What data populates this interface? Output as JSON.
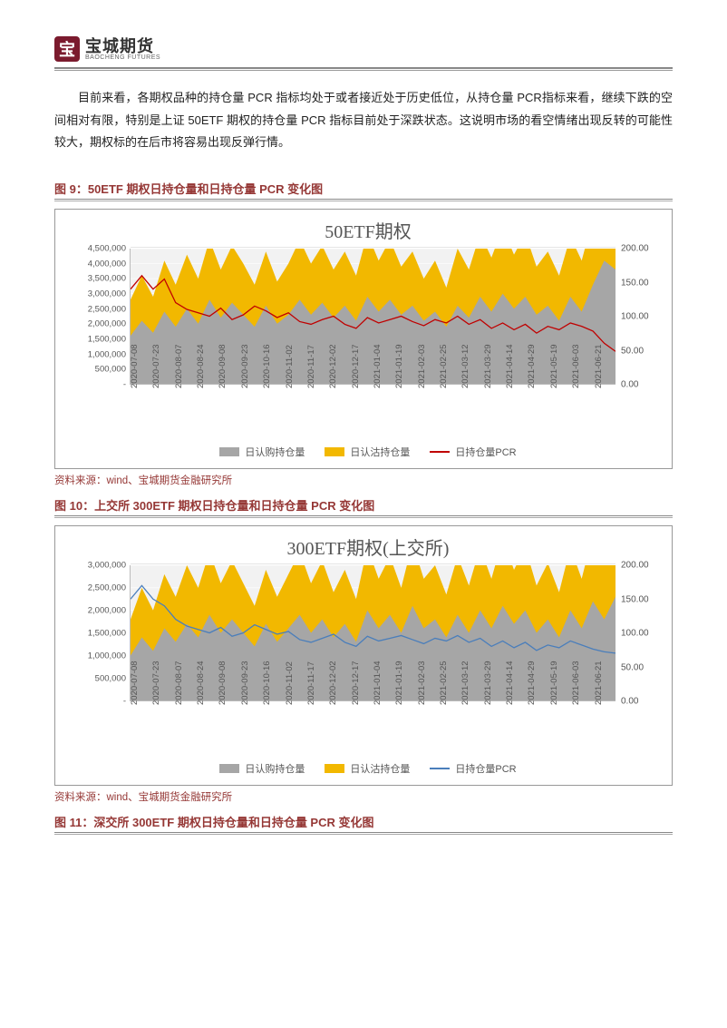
{
  "logo": {
    "cn": "宝城期货",
    "en": "BAOCHENG FUTURES",
    "mark": "宝"
  },
  "paragraph": "目前来看，各期权品种的持仓量 PCR 指标均处于或者接近处于历史低位，从持仓量 PCR指标来看，继续下跌的空间相对有限，特别是上证 50ETF 期权的持仓量 PCR 指标目前处于深跌状态。这说明市场的看空情绪出现反转的可能性较大，期权标的在后市将容易出现反弹行情。",
  "source": "资料来源：wind、宝城期货金融研究所",
  "fig9": {
    "caption": "图 9：50ETF 期权日持仓量和日持仓量 PCR 变化图",
    "title": "50ETF期权",
    "legend": {
      "call": "日认购持仓量",
      "put": "日认沽持仓量",
      "pcr": "日持仓量PCR"
    },
    "colors": {
      "call": "#a6a6a6",
      "put": "#f2b800",
      "pcr": "#c00000",
      "plot_bg": "#f2f2f2"
    },
    "left_ticks": [
      "4,500,000",
      "4,000,000",
      "3,500,000",
      "3,000,000",
      "2,500,000",
      "2,000,000",
      "1,500,000",
      "1,000,000",
      "500,000",
      "-"
    ],
    "left_max": 4500000,
    "right_ticks": [
      "200.00",
      "150.00",
      "100.00",
      "50.00",
      "0.00"
    ],
    "right_max": 200,
    "x_dates": [
      "2020-07-08",
      "2020-07-23",
      "2020-08-07",
      "2020-08-24",
      "2020-09-08",
      "2020-09-23",
      "2020-10-16",
      "2020-11-02",
      "2020-11-17",
      "2020-12-02",
      "2020-12-17",
      "2021-01-04",
      "2021-01-19",
      "2021-02-03",
      "2021-02-25",
      "2021-03-12",
      "2021-03-29",
      "2021-04-14",
      "2021-04-29",
      "2021-05-19",
      "2021-06-03",
      "2021-06-21"
    ],
    "call_series": [
      1600000,
      2100000,
      1700000,
      2400000,
      1900000,
      2500000,
      2000000,
      2800000,
      2200000,
      2700000,
      2300000,
      1900000,
      2600000,
      2000000,
      2300000,
      2800000,
      2300000,
      2700000,
      2200000,
      2600000,
      2100000,
      2900000,
      2400000,
      2800000,
      2300000,
      2600000,
      2100000,
      2400000,
      1900000,
      2600000,
      2200000,
      2900000,
      2400000,
      3000000,
      2500000,
      2900000,
      2300000,
      2600000,
      2100000,
      2900000,
      2400000,
      3300000,
      4100000,
      3800000
    ],
    "put_series": [
      1200000,
      1500000,
      1200000,
      1700000,
      1400000,
      1800000,
      1500000,
      2000000,
      1600000,
      1900000,
      1700000,
      1400000,
      1800000,
      1400000,
      1700000,
      2000000,
      1700000,
      1900000,
      1600000,
      1800000,
      1500000,
      2100000,
      1700000,
      2000000,
      1600000,
      1800000,
      1400000,
      1700000,
      1300000,
      1900000,
      1600000,
      2100000,
      1800000,
      2200000,
      1800000,
      2100000,
      1600000,
      1800000,
      1500000,
      2000000,
      1700000,
      2200000,
      2000000,
      1800000
    ],
    "pcr_series": [
      140,
      160,
      140,
      155,
      120,
      110,
      105,
      100,
      112,
      95,
      102,
      115,
      108,
      98,
      105,
      92,
      88,
      95,
      100,
      88,
      82,
      98,
      90,
      95,
      100,
      92,
      86,
      95,
      90,
      100,
      88,
      95,
      82,
      90,
      80,
      88,
      75,
      85,
      80,
      90,
      85,
      78,
      60,
      48
    ]
  },
  "fig10": {
    "caption": "图 10：上交所 300ETF 期权日持仓量和日持仓量 PCR 变化图",
    "title": "300ETF期权(上交所)",
    "legend": {
      "call": "日认购持仓量",
      "put": "日认沽持仓量",
      "pcr": "日持仓量PCR"
    },
    "colors": {
      "call": "#a6a6a6",
      "put": "#f2b800",
      "pcr": "#4a7ebb",
      "plot_bg": "#f2f2f2"
    },
    "left_ticks": [
      "3,000,000",
      "2,500,000",
      "2,000,000",
      "1,500,000",
      "1,000,000",
      "500,000",
      "-"
    ],
    "left_max": 3000000,
    "right_ticks": [
      "200.00",
      "150.00",
      "100.00",
      "50.00",
      "0.00"
    ],
    "right_max": 200,
    "x_dates": [
      "2020-07-08",
      "2020-07-23",
      "2020-08-07",
      "2020-08-24",
      "2020-09-08",
      "2020-09-23",
      "2020-10-16",
      "2020-11-02",
      "2020-11-17",
      "2020-12-02",
      "2020-12-17",
      "2021-01-04",
      "2021-01-19",
      "2021-02-03",
      "2021-02-25",
      "2021-03-12",
      "2021-03-29",
      "2021-04-14",
      "2021-04-29",
      "2021-05-19",
      "2021-06-03",
      "2021-06-21"
    ],
    "call_series": [
      1000000,
      1400000,
      1100000,
      1600000,
      1300000,
      1700000,
      1400000,
      1900000,
      1500000,
      1800000,
      1500000,
      1200000,
      1700000,
      1300000,
      1600000,
      1900000,
      1500000,
      1800000,
      1400000,
      1700000,
      1300000,
      2000000,
      1600000,
      1900000,
      1500000,
      2100000,
      1600000,
      1800000,
      1400000,
      1900000,
      1500000,
      2000000,
      1600000,
      2100000,
      1700000,
      2000000,
      1500000,
      1800000,
      1400000,
      2000000,
      1600000,
      2200000,
      1800000,
      2300000
    ],
    "put_series": [
      800000,
      1100000,
      900000,
      1200000,
      1000000,
      1300000,
      1100000,
      1400000,
      1100000,
      1300000,
      1100000,
      900000,
      1200000,
      1000000,
      1200000,
      1400000,
      1100000,
      1300000,
      1000000,
      1200000,
      950000,
      1400000,
      1100000,
      1300000,
      1000000,
      1400000,
      1100000,
      1200000,
      950000,
      1300000,
      1050000,
      1400000,
      1100000,
      1500000,
      1200000,
      1400000,
      1050000,
      1250000,
      1000000,
      1400000,
      1100000,
      1500000,
      1250000,
      1500000
    ],
    "pcr_series": [
      150,
      170,
      150,
      140,
      120,
      110,
      105,
      100,
      108,
      95,
      100,
      112,
      105,
      98,
      102,
      90,
      86,
      92,
      98,
      86,
      80,
      95,
      88,
      92,
      96,
      90,
      84,
      92,
      88,
      96,
      86,
      92,
      80,
      88,
      78,
      86,
      74,
      82,
      78,
      88,
      82,
      76,
      72,
      70
    ]
  },
  "fig11": {
    "caption": "图 11：深交所 300ETF 期权日持仓量和日持仓量 PCR 变化图"
  }
}
